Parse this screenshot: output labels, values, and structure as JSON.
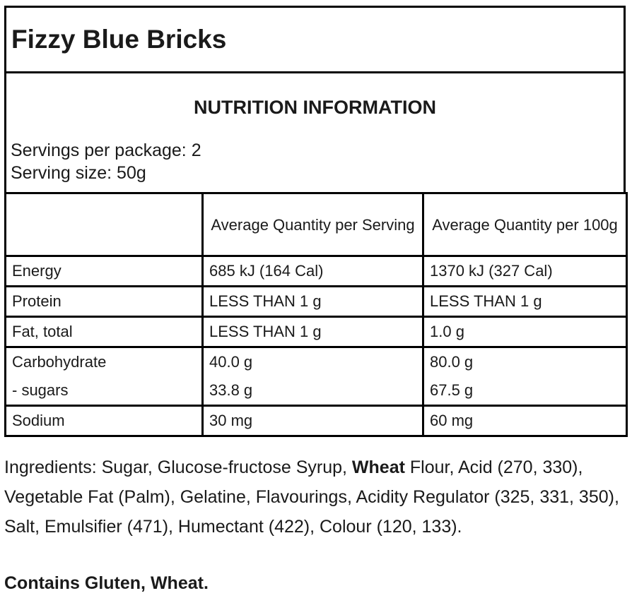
{
  "product": {
    "name": "Fizzy Blue Bricks"
  },
  "nutrition": {
    "heading": "NUTRITION INFORMATION",
    "servings_per_package": "Servings per package: 2",
    "serving_size": "Serving size: 50g",
    "columns": [
      "",
      "Average Quantity per Serving",
      "Average Quantity per 100g"
    ],
    "rows": [
      {
        "label": "Energy",
        "per_serving": "685 kJ (164 Cal)",
        "per_100g": "1370 kJ (327 Cal)"
      },
      {
        "label": "Protein",
        "per_serving": "LESS THAN 1 g",
        "per_100g": "LESS THAN 1 g"
      },
      {
        "label": "Fat, total",
        "per_serving": "LESS THAN 1 g",
        "per_100g": "1.0 g"
      },
      {
        "label": "Carbohydrate",
        "per_serving": "40.0 g",
        "per_100g": "80.0 g"
      },
      {
        "label": "- sugars",
        "per_serving": "33.8 g",
        "per_100g": "67.5 g"
      },
      {
        "label": "Sodium",
        "per_serving": "30 mg",
        "per_100g": "60 mg"
      }
    ]
  },
  "ingredients": {
    "prefix": "Ingredients: Sugar, Glucose-fructose Syrup, ",
    "bold_word": "Wheat",
    "suffix": " Flour, Acid (270, 330), Vegetable Fat (Palm), Gelatine, Flavourings, Acidity Regulator (325, 331, 350), Salt, Emulsifier (471), Humectant (422), Colour (120, 133)."
  },
  "allergen_statement": "Contains Gluten, Wheat."
}
